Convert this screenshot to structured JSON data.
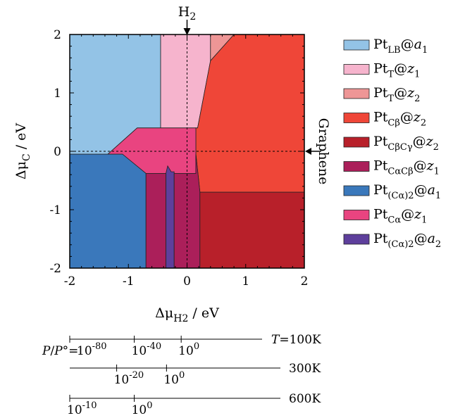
{
  "chart_data": {
    "type": "phase_diagram",
    "xlabel": "Δμ_H2 / eV",
    "ylabel": "Δμ_C / eV",
    "xlim": [
      -2,
      2
    ],
    "ylim": [
      -2,
      2
    ],
    "x_ticks": [
      -2,
      -1,
      0,
      1,
      2
    ],
    "y_ticks": [
      -2,
      -1,
      0,
      1,
      2
    ],
    "x_tick_labels": [
      "-2",
      "-1",
      "0",
      "1",
      "2"
    ],
    "y_tick_labels": [
      "-2",
      "-1",
      "0",
      "1",
      "2"
    ],
    "reference_lines": [
      {
        "label": "H2",
        "orientation": "vertical",
        "value": 0
      },
      {
        "label": "Graphene",
        "orientation": "horizontal",
        "value": 0
      }
    ],
    "legend": [
      {
        "text": "Pt_LB@a1",
        "color": "#93c3e6"
      },
      {
        "text": "Pt_T@z1",
        "color": "#f6b4cd"
      },
      {
        "text": "Pt_T@z2",
        "color": "#ee9696"
      },
      {
        "text": "Pt_Cβ@z2",
        "color": "#ef4638"
      },
      {
        "text": "Pt_CβCγ@z2",
        "color": "#b8202a"
      },
      {
        "text": "Pt_CαCβ@z1",
        "color": "#ab1f5a"
      },
      {
        "text": "Pt_(Cα)2@a1",
        "color": "#3a78bb"
      },
      {
        "text": "Pt_Cα@z1",
        "color": "#e94480"
      },
      {
        "text": "Pt_(Cα)2@a2",
        "color": "#5e3f9c"
      }
    ],
    "regions": [
      {
        "phase": "Pt_LB@a1",
        "color": "#93c3e6",
        "polygon": [
          [
            -2,
            2
          ],
          [
            -0.45,
            2
          ],
          [
            -0.45,
            0.4
          ],
          [
            -0.85,
            0.4
          ],
          [
            -1.35,
            -0.05
          ],
          [
            -2,
            -0.05
          ]
        ]
      },
      {
        "phase": "Pt_T@z1",
        "color": "#f6b4cd",
        "polygon": [
          [
            -0.45,
            2
          ],
          [
            0.4,
            2
          ],
          [
            0.4,
            1.55
          ],
          [
            0.18,
            0.4
          ],
          [
            -0.45,
            0.4
          ]
        ]
      },
      {
        "phase": "Pt_T@z2",
        "color": "#ee9696",
        "polygon": [
          [
            0.4,
            2
          ],
          [
            0.8,
            2
          ],
          [
            0.4,
            1.55
          ]
        ]
      },
      {
        "phase": "Pt_Cβ@z2",
        "color": "#ef4638",
        "polygon": [
          [
            0.8,
            2
          ],
          [
            2,
            2
          ],
          [
            2,
            -0.7
          ],
          [
            0.22,
            -0.7
          ],
          [
            0.15,
            -0.05
          ],
          [
            0.15,
            0.4
          ],
          [
            0.18,
            0.4
          ],
          [
            0.4,
            1.55
          ]
        ]
      },
      {
        "phase": "Pt_Cα@z1",
        "color": "#e94480",
        "polygon": [
          [
            -1.35,
            -0.05
          ],
          [
            -0.85,
            0.4
          ],
          [
            0.15,
            0.4
          ],
          [
            0.15,
            -0.38
          ],
          [
            -0.7,
            -0.38
          ],
          [
            -1.1,
            -0.05
          ]
        ]
      },
      {
        "phase": "Pt_(Cα)2@a1",
        "color": "#3a78bb",
        "polygon": [
          [
            -2,
            -0.05
          ],
          [
            -1.1,
            -0.05
          ],
          [
            -0.7,
            -0.38
          ],
          [
            -0.7,
            -2
          ],
          [
            -2,
            -2
          ]
        ]
      },
      {
        "phase": "Pt_CαCβ@z1",
        "color": "#ab1f5a",
        "polygon": [
          [
            -0.7,
            -0.38
          ],
          [
            -0.36,
            -0.38
          ],
          [
            -0.36,
            -2
          ],
          [
            -0.7,
            -2
          ]
        ]
      },
      {
        "phase": "Pt_(Cα)2@a2",
        "color": "#5e3f9c",
        "polygon": [
          [
            -0.36,
            -0.38
          ],
          [
            -0.33,
            -0.25
          ],
          [
            -0.27,
            -0.35
          ],
          [
            -0.22,
            -0.35
          ],
          [
            -0.22,
            -2
          ],
          [
            -0.36,
            -2
          ]
        ]
      },
      {
        "phase": "Pt_CαCβ@z1",
        "color": "#ab1f5a",
        "polygon": [
          [
            -0.22,
            -0.38
          ],
          [
            0.15,
            -0.38
          ],
          [
            0.15,
            -0.05
          ],
          [
            0.22,
            -0.7
          ],
          [
            0.22,
            -2
          ],
          [
            -0.22,
            -2
          ]
        ]
      },
      {
        "phase": "Pt_CβCγ@z2",
        "color": "#b8202a",
        "polygon": [
          [
            0.22,
            -0.7
          ],
          [
            2,
            -0.7
          ],
          [
            2,
            -2
          ],
          [
            0.22,
            -2
          ]
        ]
      }
    ],
    "pressure_scales": [
      {
        "prefix": "P/P°=",
        "temperature_label": "T=100K",
        "ticks": [
          {
            "exp": "-80",
            "pos": -2.0
          },
          {
            "exp": "-40",
            "pos": -0.9
          },
          {
            "exp": "0",
            "pos": -0.1
          }
        ]
      },
      {
        "prefix": "",
        "temperature_label": "300K",
        "ticks": [
          {
            "exp": "-20",
            "pos": -1.2
          },
          {
            "exp": "0",
            "pos": -0.35
          }
        ]
      },
      {
        "prefix": "",
        "temperature_label": "600K",
        "ticks": [
          {
            "exp": "-10",
            "pos": -2.0
          },
          {
            "exp": "0",
            "pos": -0.9
          }
        ]
      }
    ]
  }
}
